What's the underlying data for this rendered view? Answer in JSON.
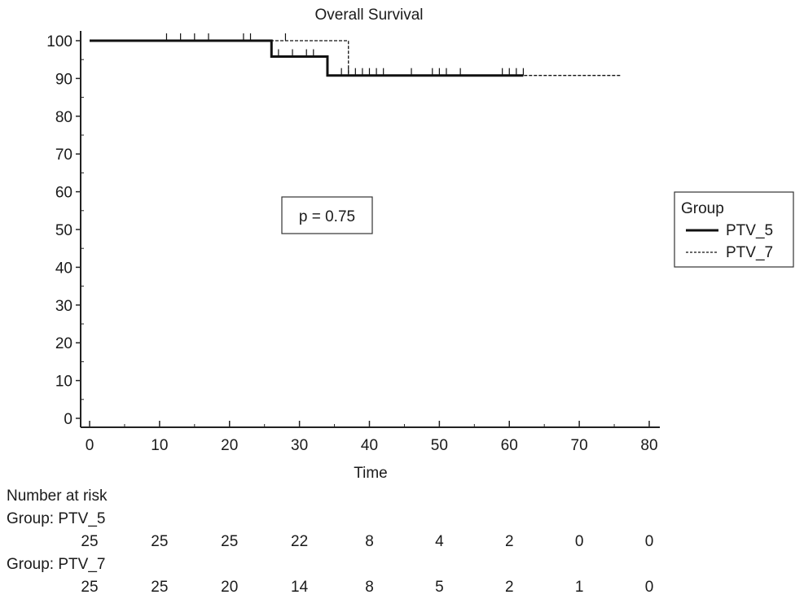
{
  "chart_data": {
    "type": "line",
    "title": "Overall Survival",
    "xlabel": "Time",
    "ylabel": "",
    "xlim": [
      0,
      80
    ],
    "ylim": [
      0,
      100
    ],
    "x_ticks": [
      0,
      10,
      20,
      30,
      40,
      50,
      60,
      70,
      80
    ],
    "y_ticks": [
      0,
      10,
      20,
      30,
      40,
      50,
      60,
      70,
      80,
      90,
      100
    ],
    "grid": false,
    "legend": {
      "title": "Group",
      "placement": "right"
    },
    "annotation": "p = 0.75",
    "series": [
      {
        "name": "PTV_5",
        "style": "solid",
        "steps": [
          [
            0,
            100
          ],
          [
            26,
            95.8
          ],
          [
            34,
            90.8
          ],
          [
            62,
            90.8
          ]
        ],
        "censor_times": [
          11,
          13,
          15,
          17,
          22,
          23,
          27,
          29,
          31,
          32,
          36,
          37,
          38,
          39,
          40,
          41,
          42,
          46,
          49,
          50,
          51,
          53,
          59,
          60,
          61,
          62
        ]
      },
      {
        "name": "PTV_7",
        "style": "dashed",
        "steps": [
          [
            0,
            100
          ],
          [
            37,
            90.8
          ],
          [
            76,
            90.8
          ]
        ],
        "censor_times": [
          28
        ]
      }
    ],
    "number_at_risk": {
      "heading": "Number at risk",
      "times": [
        0,
        10,
        20,
        30,
        40,
        50,
        60,
        70,
        80
      ],
      "groups": [
        {
          "label": "Group: PTV_5",
          "values": [
            "25",
            "25",
            "25",
            "22",
            "8",
            "4",
            "2",
            "0",
            "0"
          ]
        },
        {
          "label": "Group: PTV_7",
          "values": [
            "25",
            "25",
            "20",
            "14",
            "8",
            "5",
            "2",
            "1",
            "0"
          ]
        }
      ]
    }
  }
}
